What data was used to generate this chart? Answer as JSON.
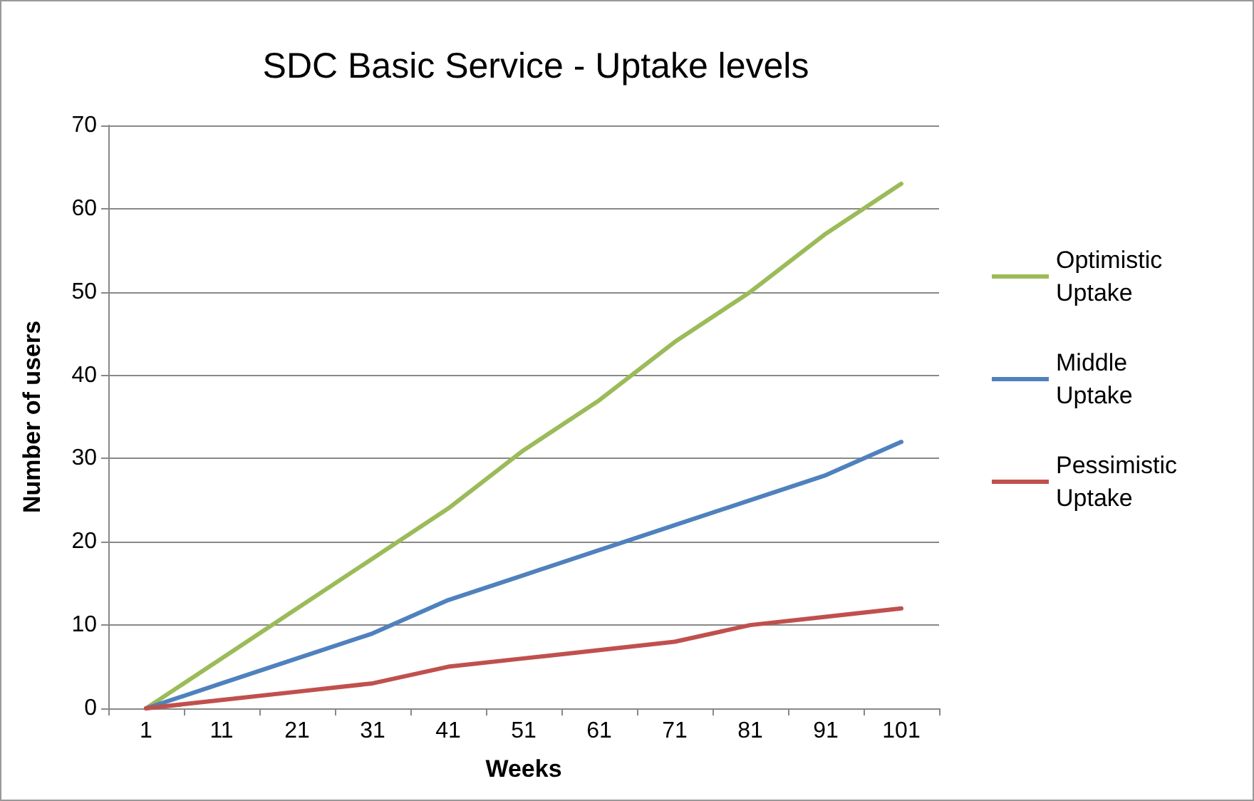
{
  "chart_data": {
    "type": "line",
    "title": "SDC Basic Service - Uptake levels",
    "xlabel": "Weeks",
    "ylabel": "Number of users",
    "categories": [
      "1",
      "11",
      "21",
      "31",
      "41",
      "51",
      "61",
      "71",
      "81",
      "91",
      "101"
    ],
    "series": [
      {
        "name": "Optimistic Uptake",
        "color": "#9bbb59",
        "values": [
          0,
          6,
          12,
          18,
          24,
          31,
          37,
          44,
          50,
          57,
          63
        ]
      },
      {
        "name": "Middle Uptake",
        "color": "#4f81bd",
        "values": [
          0,
          3,
          6,
          9,
          13,
          16,
          19,
          22,
          25,
          28,
          32
        ]
      },
      {
        "name": "Pessimistic Uptake",
        "color": "#c0504d",
        "values": [
          0,
          1,
          2,
          3,
          5,
          6,
          7,
          8,
          10,
          11,
          12
        ]
      }
    ],
    "ylim": [
      0,
      70
    ],
    "yticks": [
      0,
      10,
      20,
      30,
      40,
      50,
      60,
      70
    ],
    "grid": "y",
    "legend": "right",
    "marker": "none",
    "line_style": "solid"
  }
}
